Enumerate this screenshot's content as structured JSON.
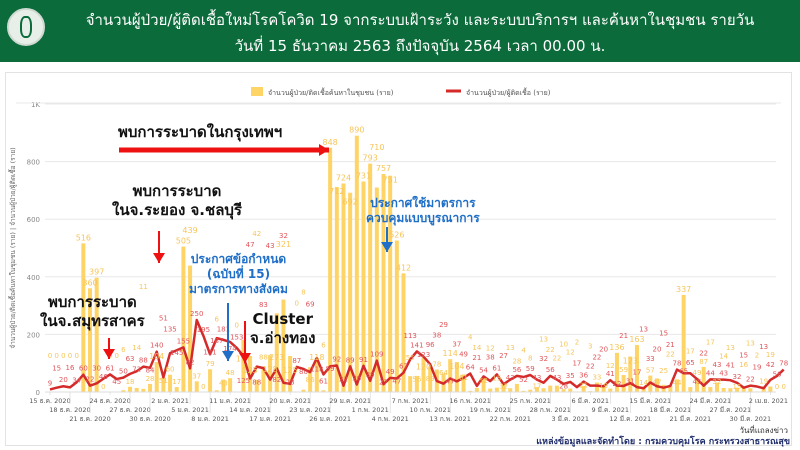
{
  "header": {
    "title_line1": "จำนวนผู้ป่วย/ผู้ติดเชื้อใหม่โรคโควิด 19 จากระบบเฝ้าระวัง และระบบบริการฯ และค้นหาในชุมชน รายวัน",
    "title_line2": "วันที่ 15 ธันวาคม 2563 ถึงปัจจุบัน 2564 เวลา 00.00 น.",
    "logo": "department-of-disease-control-logo"
  },
  "source": "แหล่งข้อมูลและจัดทำโดย : กรมควบคุมโรค กระทรวงสาธารณสุข",
  "annotations": {
    "bangkok": "พบการระบาดในกรุงเทพฯ",
    "rayong_1": "พบการระบาด",
    "rayong_2": "ในจ.ระยอง จ.ชลบุรี",
    "samut_1": "พบการระบาด",
    "samut_2": "ในจ.สมุทรสาคร",
    "decree_1": "ประกาศข้อกำหนด",
    "decree_2": "(ฉบับที่ 15)",
    "decree_3": "มาตรการทางสังคม",
    "cluster_1": "Cluster",
    "cluster_2": "จ.อ่างทอง",
    "integrated_1": "ประกาศใช้มาตรการ",
    "integrated_2": "ควบคุมแบบบูรณาการ"
  },
  "colors": {
    "bar": "#ffd466",
    "line": "#d42a2a",
    "bar_label": "#f7c55a",
    "line_label": "#e0565b",
    "arrow_red": "#ee1111",
    "arrow_blue": "#1f6fc8",
    "header": "#0b6b3a"
  },
  "chart_data": {
    "type": "bar+line",
    "ylabel": "จำนวนผู้ป่วย/ติดเชื้อค้นหาในชุมชน (ราย) | จำนวนผู้ป่วย/ผู้ติดเชื้อ (ราย)",
    "xlabel": "วันที่แถลงข่าว",
    "ylim": [
      0,
      1000
    ],
    "y_ticks": [
      "0",
      "200",
      "400",
      "600",
      "800",
      "1K"
    ],
    "grid": true,
    "legend_position": "top",
    "x_ticks": [
      "15 ธ.ค. 2020",
      "18 ธ.ค. 2020",
      "21 ธ.ค. 2020",
      "24 ธ.ค. 2020",
      "27 ธ.ค. 2020",
      "30 ธ.ค. 2020",
      "2 ม.ค. 2021",
      "5 ม.ค. 2021",
      "8 ม.ค. 2021",
      "11 ม.ค. 2021",
      "14 ม.ค. 2021",
      "17 ม.ค. 2021",
      "20 ม.ค. 2021",
      "23 ม.ค. 2021",
      "26 ม.ค. 2021",
      "29 ม.ค. 2021",
      "1 ก.พ. 2021",
      "4 ก.พ. 2021",
      "7 ก.พ. 2021",
      "10 ก.พ. 2021",
      "13 ก.พ. 2021",
      "16 ก.พ. 2021",
      "19 ก.พ. 2021",
      "22 ก.พ. 2021",
      "25 ก.พ. 2021",
      "28 ก.พ. 2021",
      "3 มี.ค. 2021",
      "6 มี.ค. 2021",
      "9 มี.ค. 2021",
      "12 มี.ค. 2021",
      "15 มี.ค. 2021",
      "18 มี.ค. 2021",
      "21 มี.ค. 2021",
      "24 มี.ค. 2021",
      "27 มี.ค. 2021",
      "30 มี.ค. 2021",
      "2 เม.ย. 2021"
    ],
    "series": [
      {
        "name": "จำนวนผู้ป่วย/ติดเชื้อค้นหาในชุมชน (ราย)",
        "type": "bar",
        "values": [
          0,
          0,
          0,
          0,
          0,
          516,
          360,
          397,
          0,
          0,
          0,
          6,
          18,
          14,
          11,
          28,
          104,
          51,
          60,
          17,
          505,
          439,
          37,
          0,
          79,
          6,
          43,
          48,
          0,
          181,
          125,
          42,
          88,
          128,
          273,
          321,
          125,
          0,
          8,
          86,
          118,
          6,
          848,
          712,
          724,
          692,
          890,
          731,
          793,
          710,
          757,
          751,
          526,
          412,
          55,
          56,
          120,
          89,
          78,
          64,
          114,
          104,
          61,
          4,
          14,
          52,
          12,
          15,
          32,
          13,
          28,
          4,
          8,
          17,
          13,
          22,
          22,
          10,
          12,
          2,
          21,
          3,
          33,
          19,
          12,
          136,
          59,
          123,
          163,
          14,
          57,
          47,
          25,
          22,
          44,
          337,
          17,
          49,
          87,
          17,
          32,
          14,
          13,
          15,
          16,
          13,
          2,
          19,
          19,
          0,
          0
        ]
      },
      {
        "name": "จำนวนผู้ป่วย/ผู้ติดเชื้อ (ราย)",
        "type": "line",
        "values": [
          9,
          15,
          20,
          16,
          34,
          60,
          22,
          30,
          46,
          61,
          45,
          50,
          63,
          72,
          88,
          84,
          140,
          51,
          135,
          145,
          155,
          82,
          250,
          195,
          131,
          187,
          181,
          174,
          153,
          125,
          47,
          88,
          83,
          43,
          82,
          32,
          28,
          87,
          80,
          69,
          118,
          61,
          89,
          92,
          22,
          89,
          26,
          91,
          39,
          109,
          27,
          49,
          47,
          67,
          113,
          141,
          123,
          96,
          38,
          29,
          47,
          37,
          49,
          64,
          21,
          54,
          38,
          61,
          27,
          43,
          56,
          52,
          59,
          43,
          32,
          56,
          43,
          28,
          35,
          17,
          36,
          22,
          22,
          20,
          41,
          22,
          21,
          31,
          17,
          13,
          33,
          20,
          15,
          21,
          78,
          65,
          65,
          45,
          22,
          44,
          43,
          43,
          41,
          32,
          15,
          22,
          19,
          13,
          42,
          56,
          78
        ]
      }
    ]
  }
}
